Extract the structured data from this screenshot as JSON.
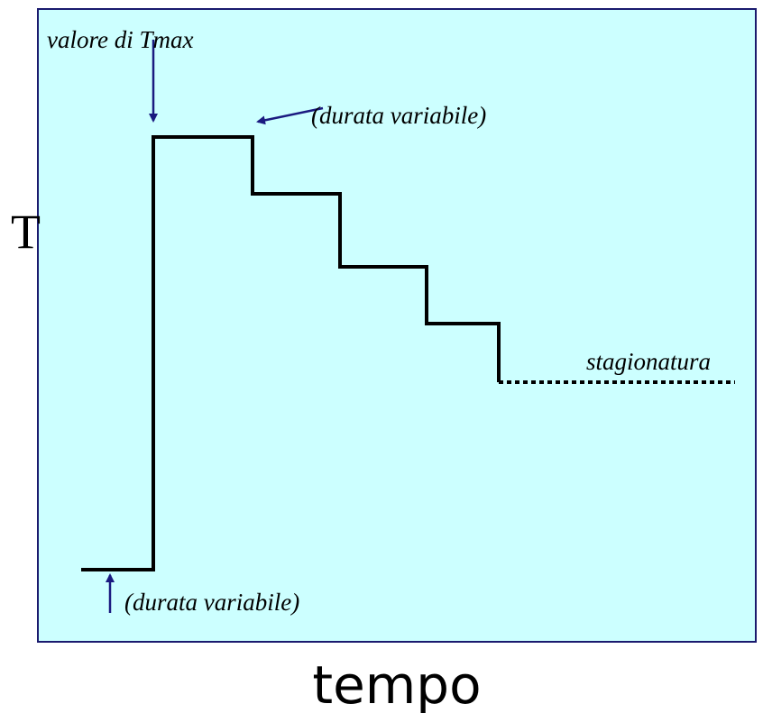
{
  "diagram": {
    "y_label": "T",
    "x_label": "tempo",
    "annotations": {
      "tmax": "valore di Tmax",
      "duration_top": "(durata variabile)",
      "duration_bottom": "(durata variabile)",
      "curing": "stagionatura"
    }
  }
}
